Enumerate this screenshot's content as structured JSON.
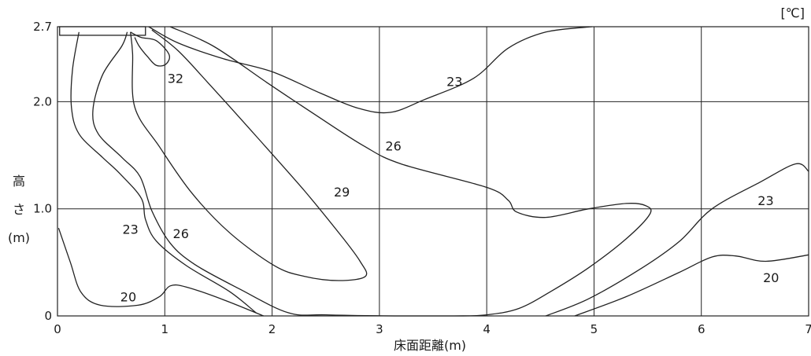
{
  "chart_data": {
    "type": "contour",
    "unit_label": "[℃]",
    "xlabel": "床面距離(m)",
    "ylabel_chars": [
      "高",
      "さ",
      "(m)"
    ],
    "xlim": [
      0,
      7
    ],
    "y_tick_values": [
      0,
      1.0,
      2.0,
      2.7
    ],
    "x_ticks": [
      "0",
      "1",
      "2",
      "3",
      "4",
      "5",
      "6",
      "7"
    ],
    "y_ticks": [
      "0",
      "1.0",
      "2.0",
      "2.7"
    ],
    "grid": true,
    "outlet": {
      "x": [
        0.02,
        0.82
      ],
      "y": [
        2.62,
        2.7
      ]
    },
    "contours": [
      {
        "level": "32",
        "points": [
          [
            0.68,
            2.65
          ],
          [
            0.78,
            2.6
          ],
          [
            0.92,
            2.57
          ],
          [
            1.04,
            2.44
          ],
          [
            1.01,
            2.35
          ],
          [
            0.92,
            2.34
          ],
          [
            0.84,
            2.42
          ],
          [
            0.76,
            2.52
          ],
          [
            0.72,
            2.6
          ]
        ]
      },
      {
        "level": "29",
        "points": [
          [
            0.68,
            2.65
          ],
          [
            0.7,
            2.45
          ],
          [
            0.72,
            1.95
          ],
          [
            0.95,
            1.58
          ],
          [
            1.25,
            1.15
          ],
          [
            1.6,
            0.78
          ],
          [
            2.02,
            0.47
          ],
          [
            2.3,
            0.37
          ],
          [
            2.62,
            0.33
          ],
          [
            2.87,
            0.37
          ],
          [
            2.82,
            0.51
          ],
          [
            2.65,
            0.74
          ],
          [
            2.3,
            1.17
          ],
          [
            1.85,
            1.68
          ],
          [
            1.4,
            2.18
          ],
          [
            1.12,
            2.48
          ],
          [
            0.88,
            2.67
          ]
        ]
      },
      {
        "level": "26",
        "points": [
          [
            0.65,
            2.65
          ],
          [
            0.6,
            2.52
          ],
          [
            0.42,
            2.25
          ],
          [
            0.33,
            1.92
          ],
          [
            0.38,
            1.7
          ],
          [
            0.6,
            1.48
          ],
          [
            0.77,
            1.3
          ],
          [
            0.88,
            0.98
          ],
          [
            1.05,
            0.68
          ],
          [
            1.28,
            0.48
          ],
          [
            1.7,
            0.25
          ],
          [
            2.15,
            0.03
          ],
          [
            2.5,
            0.01
          ],
          [
            3.2,
            0.0
          ],
          [
            3.7,
            0.0
          ],
          [
            4.0,
            0.01
          ],
          [
            4.3,
            0.07
          ],
          [
            4.6,
            0.23
          ],
          [
            4.95,
            0.45
          ],
          [
            5.3,
            0.72
          ],
          [
            5.52,
            0.95
          ],
          [
            5.48,
            1.03
          ],
          [
            5.3,
            1.05
          ],
          [
            4.95,
            1.0
          ],
          [
            4.55,
            0.92
          ],
          [
            4.28,
            0.97
          ],
          [
            4.2,
            1.08
          ],
          [
            4.0,
            1.2
          ],
          [
            3.2,
            1.42
          ],
          [
            2.85,
            1.59
          ],
          [
            2.4,
            1.88
          ],
          [
            1.95,
            2.18
          ],
          [
            1.45,
            2.52
          ],
          [
            1.05,
            2.7
          ]
        ]
      },
      {
        "level": "23a",
        "points": [
          [
            0.2,
            2.65
          ],
          [
            0.14,
            2.3
          ],
          [
            0.13,
            1.95
          ],
          [
            0.2,
            1.7
          ],
          [
            0.42,
            1.48
          ],
          [
            0.58,
            1.33
          ],
          [
            0.78,
            1.1
          ],
          [
            0.82,
            0.9
          ],
          [
            0.92,
            0.7
          ],
          [
            1.2,
            0.47
          ],
          [
            1.6,
            0.23
          ],
          [
            1.85,
            0.03
          ]
        ]
      },
      {
        "level": "23b",
        "points": [
          [
            0.85,
            2.7
          ],
          [
            1.12,
            2.55
          ],
          [
            1.55,
            2.4
          ],
          [
            2.0,
            2.28
          ],
          [
            2.45,
            2.08
          ],
          [
            2.8,
            1.94
          ],
          [
            3.1,
            1.9
          ],
          [
            3.42,
            2.02
          ],
          [
            3.88,
            2.22
          ],
          [
            4.2,
            2.5
          ],
          [
            4.55,
            2.65
          ],
          [
            4.98,
            2.7
          ]
        ]
      },
      {
        "level": "23c",
        "points": [
          [
            4.55,
            0.0
          ],
          [
            4.95,
            0.16
          ],
          [
            5.45,
            0.45
          ],
          [
            5.8,
            0.7
          ],
          [
            6.1,
            1.0
          ],
          [
            6.55,
            1.25
          ],
          [
            6.88,
            1.42
          ],
          [
            7.0,
            1.35
          ]
        ]
      },
      {
        "level": "20a",
        "points": [
          [
            0.01,
            0.82
          ],
          [
            0.12,
            0.5
          ],
          [
            0.22,
            0.22
          ],
          [
            0.4,
            0.1
          ],
          [
            0.75,
            0.1
          ],
          [
            0.95,
            0.18
          ],
          [
            1.05,
            0.28
          ],
          [
            1.2,
            0.27
          ],
          [
            1.55,
            0.15
          ],
          [
            1.92,
            0.0
          ]
        ]
      },
      {
        "level": "20b",
        "points": [
          [
            4.82,
            0.0
          ],
          [
            5.3,
            0.18
          ],
          [
            5.78,
            0.4
          ],
          [
            6.1,
            0.55
          ],
          [
            6.32,
            0.56
          ],
          [
            6.6,
            0.51
          ],
          [
            7.0,
            0.57
          ]
        ]
      }
    ],
    "labels": [
      {
        "text": "32",
        "x": 1.1,
        "y": 2.22
      },
      {
        "text": "29",
        "x": 2.65,
        "y": 1.16
      },
      {
        "text": "26",
        "x": 3.13,
        "y": 1.59
      },
      {
        "text": "26",
        "x": 1.15,
        "y": 0.77
      },
      {
        "text": "23",
        "x": 3.7,
        "y": 2.19
      },
      {
        "text": "23",
        "x": 0.68,
        "y": 0.81
      },
      {
        "text": "23",
        "x": 6.6,
        "y": 1.08
      },
      {
        "text": "20",
        "x": 0.66,
        "y": 0.18
      },
      {
        "text": "20",
        "x": 6.65,
        "y": 0.36
      }
    ]
  }
}
